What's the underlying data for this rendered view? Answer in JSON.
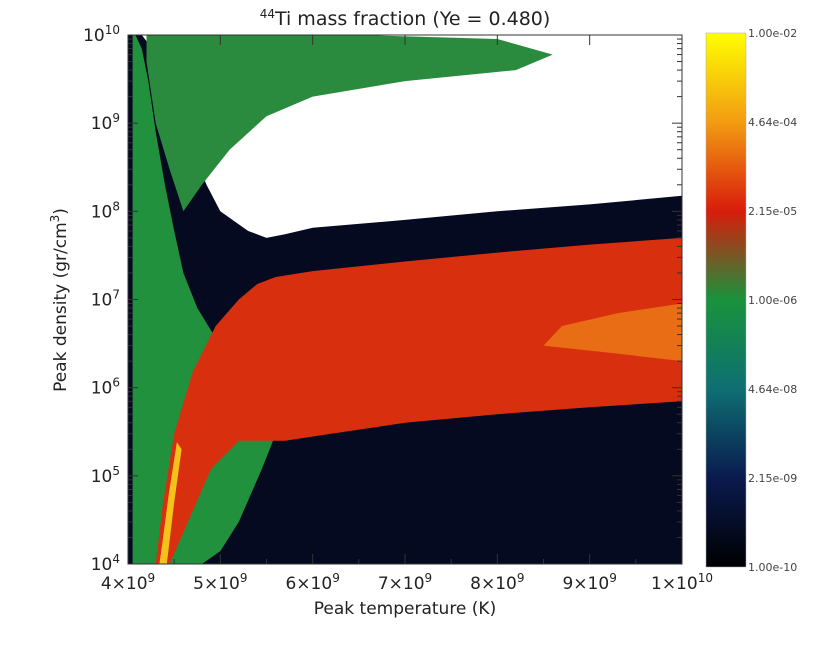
{
  "chart_data": {
    "type": "heatmap",
    "title": {
      "sup": "44",
      "main": "Ti mass fraction (Ye = 0.480)"
    },
    "xlabel": "Peak temperature (K)",
    "ylabel": {
      "main": "Peak density (gr/cm",
      "sup": "3",
      "close": ")"
    },
    "x_scale": "linear",
    "y_scale": "log",
    "xlim": [
      4000000000.0,
      10000000000.0
    ],
    "ylim": [
      10000.0,
      10000000000.0
    ],
    "x_ticks": [
      {
        "value": 4000000000.0,
        "base": "4×10",
        "exp": "9"
      },
      {
        "value": 5000000000.0,
        "base": "5×10",
        "exp": "9"
      },
      {
        "value": 6000000000.0,
        "base": "6×10",
        "exp": "9"
      },
      {
        "value": 7000000000.0,
        "base": "7×10",
        "exp": "9"
      },
      {
        "value": 8000000000.0,
        "base": "8×10",
        "exp": "9"
      },
      {
        "value": 9000000000.0,
        "base": "9×10",
        "exp": "9"
      },
      {
        "value": 10000000000.0,
        "base": "1×10",
        "exp": "10"
      }
    ],
    "y_ticks": [
      {
        "value": 10000.0,
        "base": "10",
        "exp": "4"
      },
      {
        "value": 100000.0,
        "base": "10",
        "exp": "5"
      },
      {
        "value": 1000000.0,
        "base": "10",
        "exp": "6"
      },
      {
        "value": 10000000.0,
        "base": "10",
        "exp": "7"
      },
      {
        "value": 100000000.0,
        "base": "10",
        "exp": "8"
      },
      {
        "value": 1000000000.0,
        "base": "10",
        "exp": "9"
      },
      {
        "value": 10000000000.0,
        "base": "10",
        "exp": "10"
      }
    ],
    "colorbar": {
      "scale": "log",
      "range": [
        1e-10,
        0.01
      ],
      "labels": [
        "1.00e-10",
        "2.15e-09",
        "4.64e-08",
        "1.00e-06",
        "2.15e-05",
        "4.64e-04",
        "1.00e-02"
      ],
      "colors": [
        "#000000",
        "#0a1a4e",
        "#0e6f72",
        "#19923c",
        "#d81c0c",
        "#f39c12",
        "#ffff00"
      ]
    },
    "regions": [
      {
        "name": "outer dark band",
        "level": 1e-10,
        "color": "#050a20",
        "x": [
          4000000000.0,
          4080000000.0,
          4140000000.0,
          4400000000.0,
          4700000000.0,
          5200000000.0,
          5600000000.0,
          6000000000.0,
          7000000000.0,
          8000000000.0,
          9000000000.0,
          10000000000.0,
          10000000000.0,
          9000000000.0,
          8000000000.0,
          7000000000.0,
          6000000000.0,
          5700000000.0,
          5500000000.0,
          5300000000.0,
          5000000000.0,
          4850000000.0,
          4700000000.0,
          4580000000.0,
          4500000000.0,
          4400000000.0,
          4300000000.0,
          4220000000.0,
          4150000000.0,
          4100000000.0,
          4050000000.0,
          4000000000.0
        ],
        "y": [
          10000.0,
          10000.0,
          10000.0,
          10000.0,
          10000.0,
          10000.0,
          10000.0,
          10000.0,
          10000.0,
          10000.0,
          10000.0,
          10000.0,
          150000000.0,
          120000000.0,
          100000000.0,
          80000000.0,
          65000000.0,
          55000000.0,
          50000000.0,
          60000000.0,
          100000000.0,
          200000000.0,
          500000000.0,
          1000000000.0,
          2000000000.0,
          4000000000.0,
          6000000000.0,
          8000000000.0,
          10000000000.0,
          10000000000.0,
          10000000000.0,
          10000000000.0
        ]
      },
      {
        "name": "green low-density wedge",
        "level": 1e-06,
        "color": "#22913e",
        "x": [
          4050000000.0,
          4400000000.0,
          4800000000.0,
          5000000000.0,
          5200000000.0,
          5450000000.0,
          5550000000.0,
          5600000000.0,
          5300000000.0,
          5000000000.0,
          4750000000.0,
          4600000000.0,
          4500000000.0,
          4400000000.0,
          4300000000.0,
          4220000000.0,
          4150000000.0,
          4080000000.0,
          4050000000.0
        ],
        "y": [
          10000.0,
          10000.0,
          10000.0,
          14000.0,
          30000.0,
          120000.0,
          220000.0,
          300000.0,
          1000000.0,
          3000000.0,
          8000000.0,
          20000000.0,
          60000000.0,
          200000000.0,
          800000000.0,
          3000000000.0,
          7000000000.0,
          10000000000.0,
          10000000000.0
        ]
      },
      {
        "name": "green upper plume",
        "level": 1e-06,
        "color": "#2a8a3e",
        "x": [
          4200000000.0,
          4600000000.0,
          5200000000.0,
          6500000000.0,
          8000000000.0,
          8600000000.0,
          8200000000.0,
          7000000000.0,
          6000000000.0,
          5500000000.0,
          5100000000.0,
          4800000000.0,
          4600000000.0,
          4450000000.0,
          4300000000.0,
          4200000000.0
        ],
        "y": [
          10000000000.0,
          10000000000.0,
          10000000000.0,
          10000000000.0,
          9000000000.0,
          6000000000.0,
          4000000000.0,
          3000000000.0,
          2000000000.0,
          1200000000.0,
          500000000.0,
          200000000.0,
          100000000.0,
          300000000.0,
          1000000000.0,
          5000000000.0
        ]
      },
      {
        "name": "red high-fraction band",
        "level": 2e-05,
        "color": "#d8300f",
        "x": [
          4300000000.0,
          4450000000.0,
          4650000000.0,
          4900000000.0,
          5200000000.0,
          5500000000.0,
          5700000000.0,
          6200000000.0,
          7000000000.0,
          8000000000.0,
          9000000000.0,
          10000000000.0,
          10000000000.0,
          9000000000.0,
          8000000000.0,
          7000000000.0,
          6000000000.0,
          5600000000.0,
          5400000000.0,
          5200000000.0,
          4950000000.0,
          4700000000.0,
          4500000000.0,
          4380000000.0,
          4300000000.0
        ],
        "y": [
          10000.0,
          10000.0,
          30000.0,
          120000.0,
          250000.0,
          250000.0,
          250000.0,
          300000.0,
          400000.0,
          500000.0,
          600000.0,
          700000.0,
          50000000.0,
          42000000.0,
          34000000.0,
          27000000.0,
          21000000.0,
          18000000.0,
          15000000.0,
          10000000.0,
          5000000.0,
          1500000.0,
          300000.0,
          50000.0,
          10000.0
        ]
      },
      {
        "name": "orange core",
        "level": 0.0002,
        "color": "#e86d14",
        "x": [
          8500000000.0,
          9200000000.0,
          10000000000.0,
          10000000000.0,
          9300000000.0,
          8700000000.0,
          8500000000.0
        ],
        "y": [
          3000000.0,
          2500000.0,
          2000000.0,
          9000000.0,
          7000000.0,
          5000000.0,
          3000000.0
        ]
      },
      {
        "name": "yellow diagonal streak",
        "level": 0.005,
        "color": "#f4c21a",
        "x": [
          4340000000.0,
          4420000000.0,
          4500000000.0,
          4580000000.0,
          4530000000.0,
          4440000000.0,
          4380000000.0,
          4340000000.0
        ],
        "y": [
          10000.0,
          10000.0,
          50000.0,
          200000.0,
          240000.0,
          60000.0,
          20000.0,
          10000.0
        ]
      }
    ]
  }
}
